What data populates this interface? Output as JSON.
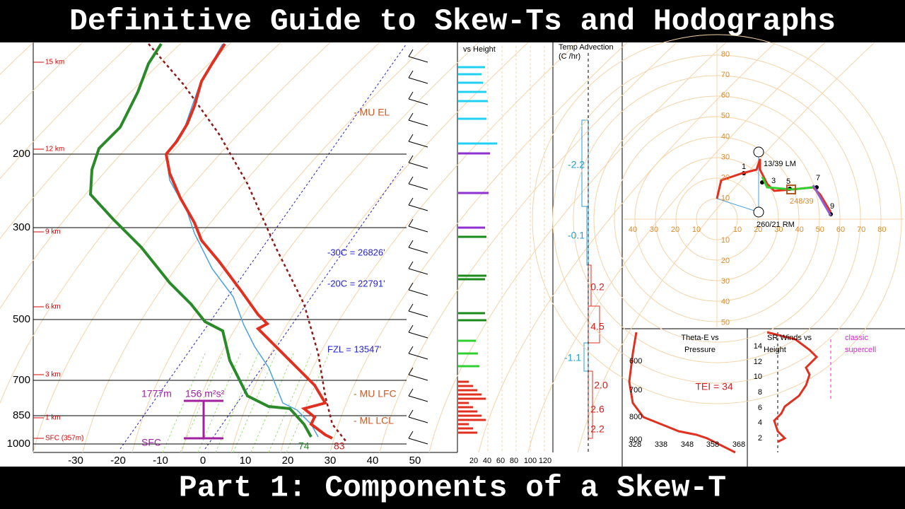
{
  "header": {
    "title": "Definitive Guide to Skew-Ts and Hodographs"
  },
  "footer": {
    "title": "Part 1: Components of a Skew-T"
  },
  "skew_t": {
    "pressure_labels": [
      "200",
      "300",
      "500",
      "700",
      "850",
      "1000"
    ],
    "temperature_labels": [
      "-30",
      "-20",
      "-10",
      "0",
      "10",
      "20",
      "30",
      "40",
      "50"
    ],
    "height_labels": [
      "15 km",
      "12 km",
      "9 km",
      "6 km",
      "3 km",
      "1 km",
      "SFC (357m)"
    ],
    "annotations": [
      "- MU EL",
      "-30C = 26826'",
      "-20C = 22791'",
      "FZL = 13547'",
      "- MU LFC",
      "- ML LCL",
      "1777m",
      "156 m²s²",
      "SFC",
      "74",
      "83"
    ]
  },
  "wind_profile": {
    "title": "vs Height",
    "axis_labels": [
      "20",
      "40",
      "60",
      "80",
      "100",
      "120"
    ]
  },
  "temp_advection": {
    "title": "Temp Advection",
    "unit": "(C /hr)",
    "values": [
      "-2.2",
      "-0.1",
      "0.2",
      "4.5",
      "-1.1",
      "2.0",
      "2.6",
      "2.2"
    ]
  },
  "hodograph": {
    "x_labels": [
      "40",
      "30",
      "20",
      "10",
      "10",
      "20",
      "30",
      "40",
      "50",
      "60",
      "70",
      "80"
    ],
    "y_labels": [
      "80",
      "70",
      "60",
      "50",
      "40",
      "30",
      "20",
      "10",
      "10",
      "20",
      "30",
      "40",
      "50"
    ],
    "annotations": [
      "13/39 LM",
      "248/39",
      "260/21 RM"
    ],
    "points": [
      "1",
      "3",
      "5",
      "7",
      "9"
    ]
  },
  "theta_e": {
    "title": [
      "Theta-E vs",
      "Pressure"
    ],
    "tei": "TEI = 34",
    "pressure_labels": [
      "600",
      "700",
      "800",
      "900"
    ],
    "theta_labels": [
      "328",
      "338",
      "348",
      "358",
      "368"
    ]
  },
  "sr_winds": {
    "title": [
      "SR Winds vs",
      "Height"
    ],
    "note": [
      "classic",
      "supercell"
    ],
    "height_labels": [
      "14",
      "12",
      "10",
      "8",
      "6",
      "4",
      "2"
    ]
  }
}
